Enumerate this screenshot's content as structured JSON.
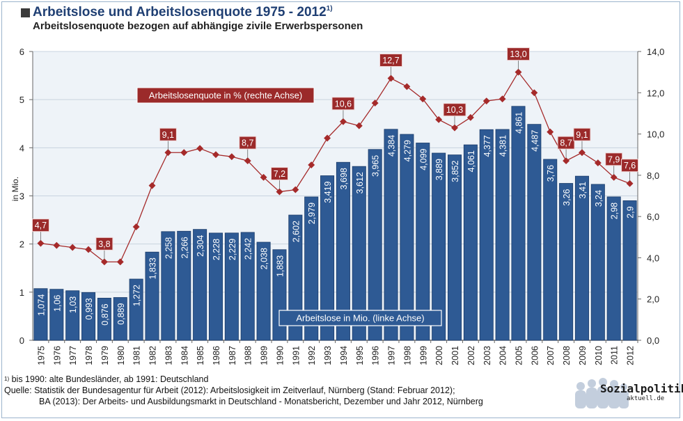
{
  "title": "Arbeitslose und Arbeitslosenquote 1975 - 2012",
  "title_footnote_marker": "1)",
  "subtitle": "Arbeitslosenquote bezogen auf abhängige zivile Erwerbspersonen",
  "footer": {
    "footnote_marker": "1)",
    "footnote_text": " bis 1990: alte Bundesländer, ab 1991: Deutschland",
    "source_line1": "Quelle: Statistik der Bundesagentur für Arbeit (2012): Arbeitslosigkeit im Zeitverlauf, Nürnberg (Stand: Februar 2012);",
    "source_line2": "BA (2013): Der Arbeits- und Ausbildungsmarkt in Deutschland - Monatsbericht, Dezember und Jahr 2012, Nürnberg"
  },
  "logo": {
    "line1": "Sozialpolitik-",
    "line2": "aktuell.de"
  },
  "colors": {
    "bar": "#2e5a94",
    "bar_edge": "#1c3d6b",
    "line": "#a52a2a",
    "label_box": "#9b2a2a",
    "title": "#1f3f73"
  },
  "chart_data": {
    "type": "bar+line",
    "categories": [
      "1975",
      "1976",
      "1977",
      "1978",
      "1979",
      "1980",
      "1981",
      "1982",
      "1983",
      "1984",
      "1985",
      "1986",
      "1987",
      "1988",
      "1989",
      "1990",
      "1991",
      "1992",
      "1993",
      "1994",
      "1995",
      "1996",
      "1997",
      "1998",
      "1999",
      "2000",
      "2001",
      "2002",
      "2003",
      "2004",
      "2005",
      "2006",
      "2007",
      "2008",
      "2009",
      "2010",
      "2011",
      "2012"
    ],
    "series": [
      {
        "name": "Arbeitslose in Mio. (linke Achse)",
        "type": "bar",
        "axis": "left",
        "values": [
          1.074,
          1.06,
          1.03,
          0.993,
          0.876,
          0.889,
          1.272,
          1.833,
          2.258,
          2.266,
          2.304,
          2.228,
          2.229,
          2.242,
          2.038,
          1.883,
          2.602,
          2.979,
          3.419,
          3.698,
          3.612,
          3.965,
          4.384,
          4.279,
          4.099,
          3.889,
          3.852,
          4.061,
          4.377,
          4.381,
          4.861,
          4.487,
          3.76,
          3.26,
          3.41,
          3.24,
          2.98,
          2.9
        ],
        "labels": [
          "1,074",
          "1,06",
          "1,03",
          "0,993",
          "0,876",
          "0,889",
          "1,272",
          "1,833",
          "2,258",
          "2,266",
          "2,304",
          "2,228",
          "2,229",
          "2,242",
          "2,038",
          "1,883",
          "2,602",
          "2,979",
          "3,419",
          "3,698",
          "3,612",
          "3,965",
          "4,384",
          "4,279",
          "4,099",
          "3,889",
          "3,852",
          "4,061",
          "4,377",
          "4,381",
          "4,861",
          "4,487",
          "3,76",
          "3,26",
          "3,41",
          "3,24",
          "2,98",
          "2,9"
        ]
      },
      {
        "name": "Arbeitslosenquote in % (rechte Achse)",
        "type": "line",
        "axis": "right",
        "values": [
          4.7,
          4.6,
          4.5,
          4.4,
          3.8,
          3.8,
          5.5,
          7.5,
          9.1,
          9.1,
          9.3,
          9.0,
          8.9,
          8.7,
          7.9,
          7.2,
          7.3,
          8.5,
          9.8,
          10.6,
          10.4,
          11.5,
          12.7,
          12.3,
          11.7,
          10.7,
          10.3,
          10.8,
          11.6,
          11.7,
          13.0,
          12.0,
          10.1,
          8.7,
          9.1,
          8.6,
          7.9,
          7.6
        ],
        "labeled": [
          {
            "index": 0,
            "label": "4,7"
          },
          {
            "index": 4,
            "label": "3,8"
          },
          {
            "index": 8,
            "label": "9,1"
          },
          {
            "index": 13,
            "label": "8,7"
          },
          {
            "index": 15,
            "label": "7,2"
          },
          {
            "index": 19,
            "label": "10,6"
          },
          {
            "index": 22,
            "label": "12,7"
          },
          {
            "index": 26,
            "label": "10,3"
          },
          {
            "index": 30,
            "label": "13,0"
          },
          {
            "index": 33,
            "label": "8,7"
          },
          {
            "index": 34,
            "label": "9,1"
          },
          {
            "index": 36,
            "label": "7,9"
          },
          {
            "index": 37,
            "label": "7,6"
          }
        ]
      }
    ],
    "ylabel_left": "in Mio.",
    "ylim_left": [
      0,
      6
    ],
    "yticks_left": [
      "0",
      "1",
      "2",
      "3",
      "4",
      "5",
      "6"
    ],
    "ylim_right": [
      0,
      14
    ],
    "yticks_right": [
      "0,0",
      "2,0",
      "4,0",
      "6,0",
      "8,0",
      "10,0",
      "12,0",
      "14,0"
    ],
    "grid": true,
    "legend": "inline labels in plot"
  }
}
